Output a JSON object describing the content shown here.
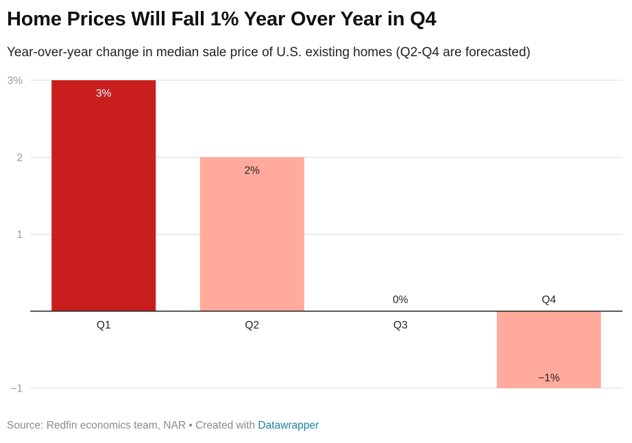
{
  "header": {
    "title": "Home Prices Will Fall 1% Year Over Year in Q4",
    "subtitle": "Year-over-year change in median sale price of U.S. existing homes (Q2-Q4 are forecasted)"
  },
  "footer": {
    "source": "Source: Redfin economics team, NAR • Created with ",
    "link_text": "Datawrapper"
  },
  "colors": {
    "actual": "#c81e1e",
    "forecast": "#ffaa9c",
    "grid": "#dcdcdc",
    "baseline": "#222222"
  },
  "chart_data": {
    "type": "bar",
    "title": "Home Prices Will Fall 1% Year Over Year in Q4",
    "subtitle": "Year-over-year change in median sale price of U.S. existing homes (Q2-Q4 are forecasted)",
    "categories": [
      "Q1",
      "Q2",
      "Q3",
      "Q4"
    ],
    "values": [
      3,
      2,
      0,
      -1
    ],
    "data_labels": [
      "3%",
      "2%",
      "0%",
      "−1%"
    ],
    "bar_kind": [
      "actual",
      "forecast",
      "forecast",
      "forecast"
    ],
    "yticks": [
      3,
      2,
      1,
      -1
    ],
    "ytick_labels": [
      "3%",
      "2",
      "1",
      "−1"
    ],
    "ylim": [
      -1,
      3
    ],
    "xlabel": "",
    "ylabel": "",
    "grid": true,
    "legend": "none"
  }
}
